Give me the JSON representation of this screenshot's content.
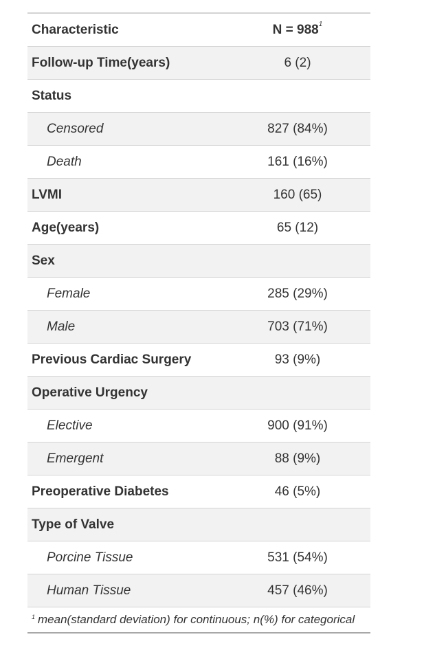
{
  "header": {
    "characteristic": "Characteristic",
    "n_label": "N = 988",
    "n_footnote": "1"
  },
  "rows": [
    {
      "label": "Follow-up Time(years)",
      "value": "6 (2)"
    },
    {
      "label": "Status",
      "value": ""
    },
    {
      "label": "Censored",
      "value": "827 (84%)"
    },
    {
      "label": "Death",
      "value": "161 (16%)"
    },
    {
      "label": "LVMI",
      "value": "160 (65)"
    },
    {
      "label": "Age(years)",
      "value": "65 (12)"
    },
    {
      "label": "Sex",
      "value": ""
    },
    {
      "label": "Female",
      "value": "285 (29%)"
    },
    {
      "label": "Male",
      "value": "703 (71%)"
    },
    {
      "label": "Previous Cardiac Surgery",
      "value": "93 (9%)"
    },
    {
      "label": "Operative Urgency",
      "value": ""
    },
    {
      "label": "Elective",
      "value": "900 (91%)"
    },
    {
      "label": "Emergent",
      "value": "88 (9%)"
    },
    {
      "label": "Preoperative Diabetes",
      "value": "46 (5%)"
    },
    {
      "label": "Type of Valve",
      "value": ""
    },
    {
      "label": "Porcine Tissue",
      "value": "531 (54%)"
    },
    {
      "label": "Human Tissue",
      "value": "457 (46%)"
    }
  ],
  "footnote": {
    "marker": "1",
    "text": "mean(standard deviation) for continuous; n(%) for categorical"
  }
}
